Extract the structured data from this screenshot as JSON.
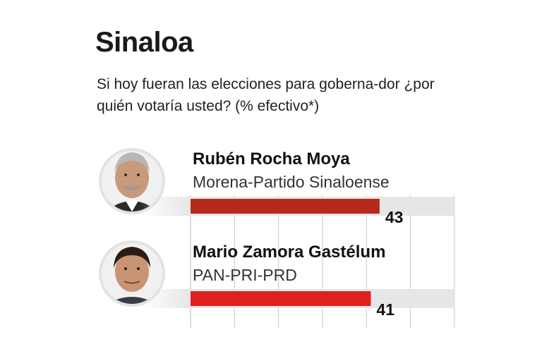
{
  "title": "Sinaloa",
  "subtitle": "Si hoy fueran las elecciones para goberna-dor ¿por quién votaría usted? (% efectivo*)",
  "chart_data": {
    "type": "bar",
    "orientation": "horizontal",
    "title": "Sinaloa",
    "subtitle": "Si hoy fueran las elecciones para goberna-dor ¿por quién votaría usted? (% efectivo*)",
    "xlim": [
      0,
      60
    ],
    "grid": true,
    "categories": [
      "Rubén Rocha Moya",
      "Mario Zamora Gastélum"
    ],
    "parties": [
      "Morena-Partido Sinaloense",
      "PAN-PRI-PRD"
    ],
    "values": [
      43,
      41
    ],
    "colors": [
      "#b52a1d",
      "#e0201f"
    ],
    "track_color": "#e6e6e6",
    "grid_color": "#d0d0d0"
  }
}
